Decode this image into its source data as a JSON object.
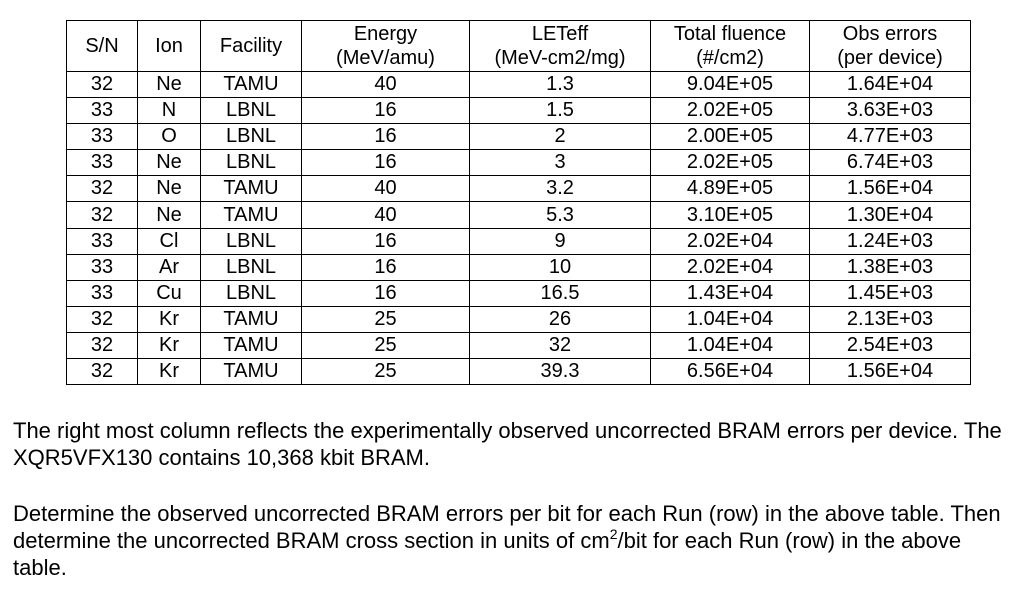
{
  "table": {
    "headers": [
      [
        "S/N"
      ],
      [
        "Ion"
      ],
      [
        "Facility"
      ],
      [
        "Energy",
        "(MeV/amu)"
      ],
      [
        "LETeff",
        "(MeV-cm2/mg)"
      ],
      [
        "Total fluence",
        "(#/cm2)"
      ],
      [
        "Obs errors",
        "(per device)"
      ]
    ],
    "rows": [
      [
        "32",
        "Ne",
        "TAMU",
        "40",
        "1.3",
        "9.04E+05",
        "1.64E+04"
      ],
      [
        "33",
        "N",
        "LBNL",
        "16",
        "1.5",
        "2.02E+05",
        "3.63E+03"
      ],
      [
        "33",
        "O",
        "LBNL",
        "16",
        "2",
        "2.00E+05",
        "4.77E+03"
      ],
      [
        "33",
        "Ne",
        "LBNL",
        "16",
        "3",
        "2.02E+05",
        "6.74E+03"
      ],
      [
        "32",
        "Ne",
        "TAMU",
        "40",
        "3.2",
        "4.89E+05",
        "1.56E+04"
      ],
      [
        "32",
        "Ne",
        "TAMU",
        "40",
        "5.3",
        "3.10E+05",
        "1.30E+04"
      ],
      [
        "33",
        "Cl",
        "LBNL",
        "16",
        "9",
        "2.02E+04",
        "1.24E+03"
      ],
      [
        "33",
        "Ar",
        "LBNL",
        "16",
        "10",
        "2.02E+04",
        "1.38E+03"
      ],
      [
        "33",
        "Cu",
        "LBNL",
        "16",
        "16.5",
        "1.43E+04",
        "1.45E+03"
      ],
      [
        "32",
        "Kr",
        "TAMU",
        "25",
        "26",
        "1.04E+04",
        "2.13E+03"
      ],
      [
        "32",
        "Kr",
        "TAMU",
        "25",
        "32",
        "1.04E+04",
        "2.54E+03"
      ],
      [
        "32",
        "Kr",
        "TAMU",
        "25",
        "39.3",
        "6.56E+04",
        "1.56E+04"
      ]
    ]
  },
  "paragraph1": "The right most column reflects the experimentally observed uncorrected BRAM errors per device.  The XQR5VFX130 contains 10,368 kbit BRAM.",
  "paragraph2": {
    "before": "Determine the observed uncorrected BRAM errors per bit for each Run (row) in the above table.  Then determine the uncorrected BRAM cross section in units of cm",
    "sup": "2",
    "after": "/bit for each Run (row) in the above table."
  }
}
